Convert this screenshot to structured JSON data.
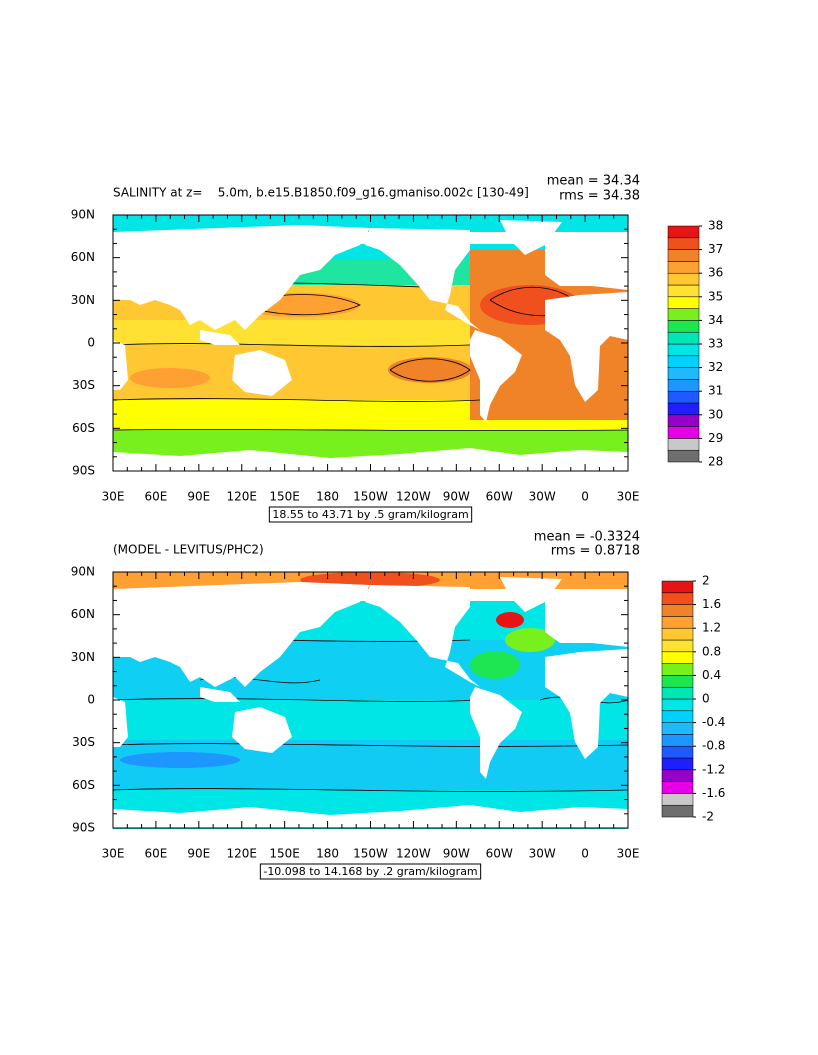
{
  "chart_data": [
    {
      "type": "contour-map",
      "title": "SALINITY at z=    5.0m, b.e15.B1850.f09_g16.gmaniso.002c [130-49]",
      "mean_label": "mean = 34.34",
      "rms_label": "rms = 34.38",
      "contour_info": "18.55 to 43.71 by .5 gram/kilogram",
      "xlim": [
        30,
        390
      ],
      "xticks": [
        {
          "value": 30,
          "label": "30E"
        },
        {
          "value": 60,
          "label": "60E"
        },
        {
          "value": 90,
          "label": "90E"
        },
        {
          "value": 120,
          "label": "120E"
        },
        {
          "value": 150,
          "label": "150E"
        },
        {
          "value": 180,
          "label": "180"
        },
        {
          "value": 210,
          "label": "150W"
        },
        {
          "value": 240,
          "label": "120W"
        },
        {
          "value": 270,
          "label": "90W"
        },
        {
          "value": 300,
          "label": "60W"
        },
        {
          "value": 330,
          "label": "30W"
        },
        {
          "value": 360,
          "label": "0"
        },
        {
          "value": 390,
          "label": "30E"
        }
      ],
      "ylim": [
        -90,
        90
      ],
      "yticks": [
        {
          "value": 90,
          "label": "90N"
        },
        {
          "value": 60,
          "label": "60N"
        },
        {
          "value": 30,
          "label": "30N"
        },
        {
          "value": 0,
          "label": "0"
        },
        {
          "value": -30,
          "label": "30S"
        },
        {
          "value": -60,
          "label": "60S"
        },
        {
          "value": -90,
          "label": "90S"
        }
      ],
      "colorbar": {
        "lim": [
          28,
          38
        ],
        "ticks": [
          38,
          37,
          36,
          35,
          34,
          33,
          32,
          31,
          30,
          29,
          28
        ],
        "colors": [
          "#6e6e6e",
          "#c8c8c8",
          "#e600e6",
          "#9600c8",
          "#1e1eff",
          "#1e5aff",
          "#1e96ff",
          "#1eb9ff",
          "#00d2ff",
          "#00e6e6",
          "#00e6b4",
          "#1ee650",
          "#78f01e",
          "#ffff00",
          "#ffe132",
          "#ffc832",
          "#ffa032",
          "#f08228",
          "#f0501e",
          "#e61414"
        ]
      }
    },
    {
      "type": "contour-map",
      "title": "(MODEL - LEVITUS/PHC2)",
      "mean_label": "mean = -0.3324",
      "rms_label": "rms = 0.8718",
      "contour_info": "-10.098 to 14.168 by .2 gram/kilogram",
      "xlim": [
        30,
        390
      ],
      "xticks": [
        {
          "value": 30,
          "label": "30E"
        },
        {
          "value": 60,
          "label": "60E"
        },
        {
          "value": 90,
          "label": "90E"
        },
        {
          "value": 120,
          "label": "120E"
        },
        {
          "value": 150,
          "label": "150E"
        },
        {
          "value": 180,
          "label": "180"
        },
        {
          "value": 210,
          "label": "150W"
        },
        {
          "value": 240,
          "label": "120W"
        },
        {
          "value": 270,
          "label": "90W"
        },
        {
          "value": 300,
          "label": "60W"
        },
        {
          "value": 330,
          "label": "30W"
        },
        {
          "value": 360,
          "label": "0"
        },
        {
          "value": 390,
          "label": "30E"
        }
      ],
      "ylim": [
        -90,
        90
      ],
      "yticks": [
        {
          "value": 90,
          "label": "90N"
        },
        {
          "value": 60,
          "label": "60N"
        },
        {
          "value": 30,
          "label": "30N"
        },
        {
          "value": 0,
          "label": "0"
        },
        {
          "value": -30,
          "label": "30S"
        },
        {
          "value": -60,
          "label": "60S"
        },
        {
          "value": -90,
          "label": "90S"
        }
      ],
      "colorbar": {
        "lim": [
          -2,
          2
        ],
        "ticks": [
          2,
          1.6,
          1.2,
          0.8,
          0.4,
          0,
          -0.4,
          -0.8,
          -1.2,
          -1.6,
          -2
        ],
        "colors": [
          "#6e6e6e",
          "#c8c8c8",
          "#e600e6",
          "#9600c8",
          "#1e1eff",
          "#1e5aff",
          "#1e96ff",
          "#1eb9ff",
          "#00d2ff",
          "#00e6e6",
          "#00e6b4",
          "#1ee650",
          "#78f01e",
          "#ffff00",
          "#ffe132",
          "#ffc832",
          "#ffa032",
          "#f08228",
          "#f0501e",
          "#e61414"
        ]
      }
    }
  ]
}
